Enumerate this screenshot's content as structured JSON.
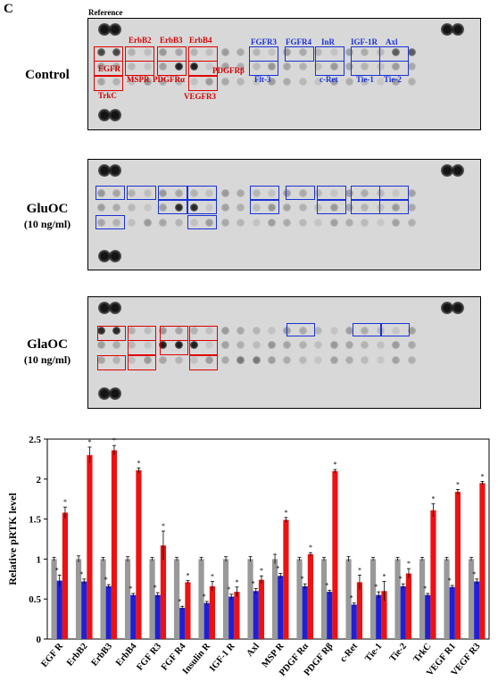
{
  "panel_letter": "C",
  "reference_label": "Reference",
  "conditions": [
    {
      "name": "Control",
      "conc": ""
    },
    {
      "name": "GluOC",
      "conc": "(10 ng/ml)"
    },
    {
      "name": "GlaOC",
      "conc": "(10 ng/ml)"
    }
  ],
  "array_labels": {
    "red": [
      "ErbB2",
      "ErbB3",
      "ErbB4",
      "EGFR",
      "MSPR",
      "PDGFRα",
      "PDGFRβ",
      "TrkC",
      "VEGFR3"
    ],
    "blue": [
      "FGFR3",
      "FGFR4",
      "InR",
      "IGF-1R",
      "Axl",
      "Flt-3",
      "c-Ret",
      "Tie-1",
      "Tie-2"
    ]
  },
  "colors": {
    "control": "#999999",
    "gluoc": "#1f1fd6",
    "glaoc": "#ee1111",
    "red_box": "#e00000",
    "blue_box": "#1a33d6"
  },
  "chart_data": {
    "type": "bar",
    "ylabel": "Relative pRTK level",
    "ylim": [
      0,
      2.5
    ],
    "yticks": [
      "0",
      "0.5",
      "1",
      "1.5",
      "2",
      "2.5"
    ],
    "categories": [
      "EGF R",
      "ErbB2",
      "ErbB3",
      "ErbB4",
      "FGF R3",
      "FGF R4",
      "Insulin R",
      "IGF-1 R",
      "Axl",
      "MSP R",
      "PDGF Rα",
      "PDGF Rβ",
      "c-Ret",
      "Tie-1",
      "Tie-2",
      "TrkC",
      "VEGF R1",
      "VEGF R3"
    ],
    "series": [
      {
        "values": [
          1.0,
          1.0,
          1.0,
          1.0,
          1.0,
          1.0,
          1.0,
          1.0,
          1.0,
          1.0,
          1.0,
          1.0,
          1.0,
          1.0,
          1.0,
          1.0,
          1.0,
          1.0
        ],
        "errors": [
          0.02,
          0.04,
          0.02,
          0.03,
          0.02,
          0.02,
          0.02,
          0.03,
          0.03,
          0.06,
          0.02,
          0.02,
          0.03,
          0.02,
          0.02,
          0.02,
          0.02,
          0.02
        ]
      },
      {
        "values": [
          0.73,
          0.72,
          0.66,
          0.55,
          0.55,
          0.39,
          0.45,
          0.53,
          0.6,
          0.79,
          0.66,
          0.59,
          0.43,
          0.55,
          0.66,
          0.55,
          0.65,
          0.72
        ],
        "errors": [
          0.07,
          0.03,
          0.02,
          0.02,
          0.03,
          0.02,
          0.02,
          0.03,
          0.03,
          0.03,
          0.03,
          0.02,
          0.02,
          0.04,
          0.03,
          0.02,
          0.02,
          0.03
        ]
      },
      {
        "values": [
          1.58,
          2.3,
          2.36,
          2.11,
          1.17,
          0.71,
          0.66,
          0.59,
          0.74,
          1.49,
          1.06,
          2.1,
          0.71,
          0.6,
          0.82,
          1.61,
          1.84,
          1.95
        ],
        "errors": [
          0.07,
          0.1,
          0.06,
          0.03,
          0.18,
          0.02,
          0.06,
          0.06,
          0.05,
          0.03,
          0.02,
          0.02,
          0.09,
          0.12,
          0.06,
          0.08,
          0.03,
          0.02
        ]
      }
    ],
    "significance": "*"
  }
}
